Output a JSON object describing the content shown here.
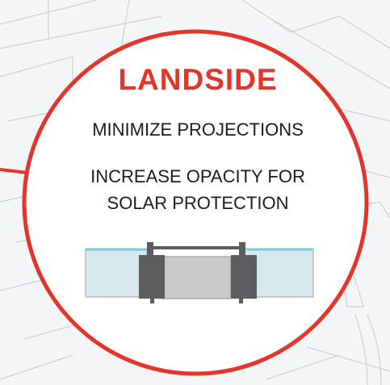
{
  "heading": "LANDSIDE",
  "strategies": [
    "MINIMIZE PROJECTIONS",
    "INCREASE OPACITY FOR",
    "SOLAR PROTECTION"
  ],
  "colors": {
    "accent": "#e2352b",
    "glass": "#d6e7ed",
    "glass_edge": "#7fcad8",
    "mullion": "#5b5d60",
    "opaque_panel": "#c9cacb",
    "background_sketch": "#c8cbcf"
  }
}
